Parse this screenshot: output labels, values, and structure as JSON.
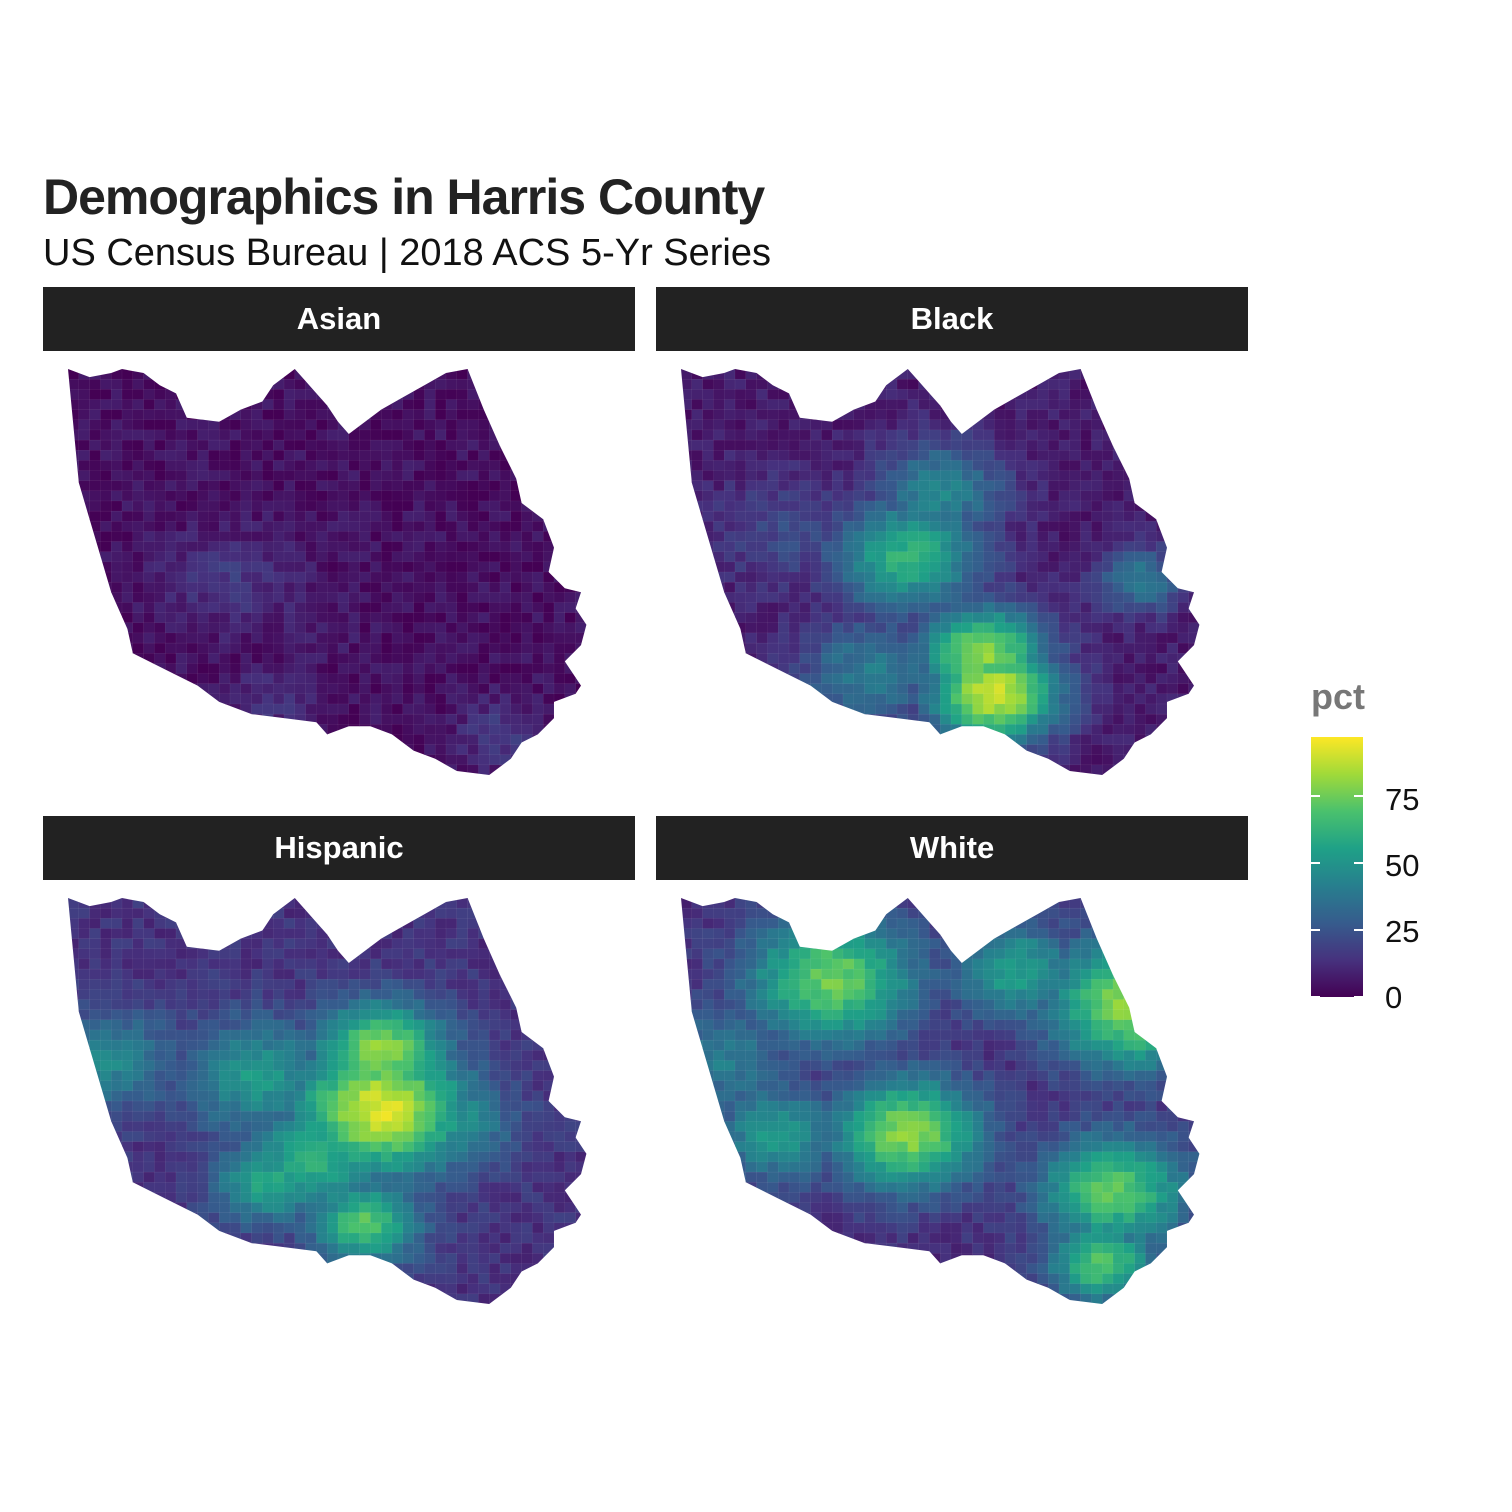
{
  "title": "Demographics in Harris County",
  "subtitle": "US Census Bureau | 2018 ACS 5-Yr Series",
  "panels": [
    "Asian",
    "Black",
    "Hispanic",
    "White"
  ],
  "legend": {
    "title": "pct",
    "ticks": [
      "75",
      "50",
      "25",
      "0"
    ],
    "tick_values": [
      75,
      50,
      25,
      0
    ],
    "range": [
      0,
      97
    ],
    "palette": "viridis",
    "colors": [
      "#440154",
      "#46327e",
      "#365c8d",
      "#277f8e",
      "#1fa187",
      "#4ac16d",
      "#a0da39",
      "#fde725"
    ]
  },
  "map_data": {
    "Asian": {
      "base": 4,
      "hotspots": [
        [
          30,
          52,
          16,
          12
        ],
        [
          37,
          82,
          14,
          8
        ],
        [
          80,
          90,
          18,
          8
        ],
        [
          42,
          62,
          9,
          10
        ]
      ]
    },
    "Black": {
      "base": 7,
      "hotspots": [
        [
          42,
          46,
          62,
          14
        ],
        [
          56,
          70,
          80,
          12
        ],
        [
          58,
          80,
          92,
          12
        ],
        [
          48,
          30,
          45,
          12
        ],
        [
          85,
          52,
          40,
          8
        ],
        [
          35,
          75,
          40,
          14
        ],
        [
          20,
          40,
          22,
          14
        ]
      ]
    },
    "Hispanic": {
      "base": 14,
      "hotspots": [
        [
          58,
          52,
          92,
          16
        ],
        [
          58,
          38,
          82,
          12
        ],
        [
          46,
          64,
          62,
          14
        ],
        [
          35,
          44,
          52,
          14
        ],
        [
          8,
          40,
          45,
          12
        ],
        [
          37,
          70,
          58,
          10
        ],
        [
          70,
          55,
          52,
          12
        ],
        [
          55,
          80,
          70,
          10
        ]
      ]
    },
    "White": {
      "base": 12,
      "hotspots": [
        [
          28,
          20,
          75,
          16
        ],
        [
          84,
          26,
          82,
          16
        ],
        [
          42,
          58,
          80,
          14
        ],
        [
          80,
          72,
          72,
          14
        ],
        [
          78,
          90,
          70,
          10
        ],
        [
          8,
          40,
          40,
          14
        ],
        [
          18,
          58,
          52,
          12
        ],
        [
          62,
          18,
          55,
          12
        ]
      ]
    }
  }
}
